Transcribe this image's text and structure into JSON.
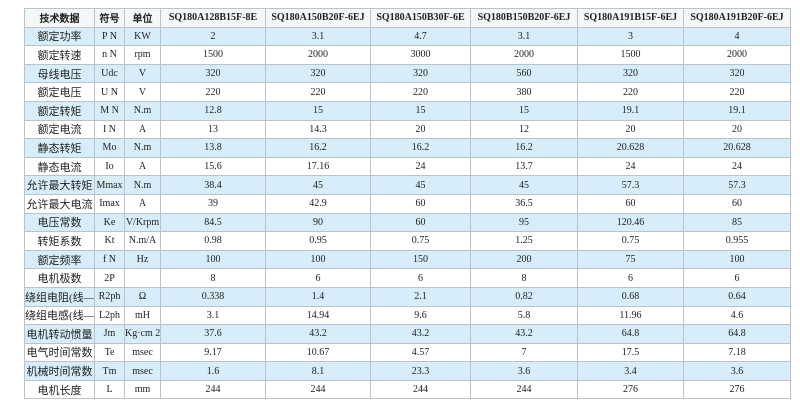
{
  "table": {
    "header": [
      "技术数据",
      "符号",
      "单位",
      "SQ180A128B15F-8E",
      "SQ180A150B20F-6EJ",
      "SQ180A150B30F-6E",
      "SQ180B150B20F-6EJ",
      "SQ180A191B15F-6EJ",
      "SQ180A191B20F-6EJ"
    ],
    "rows": [
      [
        "额定功率",
        "P N",
        "KW",
        "2",
        "3.1",
        "4.7",
        "3.1",
        "3",
        "4"
      ],
      [
        "额定转速",
        "n N",
        "rpm",
        "1500",
        "2000",
        "3000",
        "2000",
        "1500",
        "2000"
      ],
      [
        "母线电压",
        "Udc",
        "V",
        "320",
        "320",
        "320",
        "560",
        "320",
        "320"
      ],
      [
        "额定电压",
        "U N",
        "V",
        "220",
        "220",
        "220",
        "380",
        "220",
        "220"
      ],
      [
        "额定转矩",
        "M N",
        "N.m",
        "12.8",
        "15",
        "15",
        "15",
        "19.1",
        "19.1"
      ],
      [
        "额定电流",
        "I N",
        "A",
        "13",
        "14.3",
        "20",
        "12",
        "20",
        "20"
      ],
      [
        "静态转矩",
        "Mo",
        "N.m",
        "13.8",
        "16.2",
        "16.2",
        "16.2",
        "20.628",
        "20.628"
      ],
      [
        "静态电流",
        "Io",
        "A",
        "15.6",
        "17.16",
        "24",
        "13.7",
        "24",
        "24"
      ],
      [
        "允许最大转矩",
        "Mmax",
        "N.m",
        "38.4",
        "45",
        "45",
        "45",
        "57.3",
        "57.3"
      ],
      [
        "允许最大电流",
        "Imax",
        "A",
        "39",
        "42.9",
        "60",
        "36.5",
        "60",
        "60"
      ],
      [
        "电压常数",
        "Ke",
        "V/Krpm",
        "84.5",
        "90",
        "60",
        "95",
        "120.46",
        "85"
      ],
      [
        "转矩系数",
        "Kt",
        "N.m/A",
        "0.98",
        "0.95",
        "0.75",
        "1.25",
        "0.75",
        "0.955"
      ],
      [
        "额定频率",
        "f N",
        "Hz",
        "100",
        "100",
        "150",
        "200",
        "75",
        "100"
      ],
      [
        "电机极数",
        "2P",
        null,
        "8",
        "6",
        "6",
        "8",
        "6",
        "6"
      ],
      [
        "绕组电阻(线—线)",
        "R2ph",
        "Ω",
        "0.338",
        "1.4",
        "2.1",
        "0.82",
        "0.68",
        "0.64"
      ],
      [
        "绕组电感(线—线)",
        "L2ph",
        "mH",
        "3.1",
        "14.94",
        "9.6",
        "5.8",
        "11.96",
        "4.6"
      ],
      [
        "电机转动惯量",
        "Jm",
        "Kg·cm 2",
        "37.6",
        "43.2",
        "43.2",
        "43.2",
        "64.8",
        "64.8"
      ],
      [
        "电气时间常数",
        "Te",
        "msec",
        "9.17",
        "10.67",
        "4.57",
        "7",
        "17.5",
        "7.18"
      ],
      [
        "机械时间常数",
        "Tm",
        "msec",
        "1.6",
        "8.1",
        "23.3",
        "3.6",
        "3.4",
        "3.6"
      ],
      [
        "电机长度",
        "L",
        "mm",
        "244",
        "244",
        "244",
        "244",
        "276",
        "276"
      ]
    ]
  }
}
